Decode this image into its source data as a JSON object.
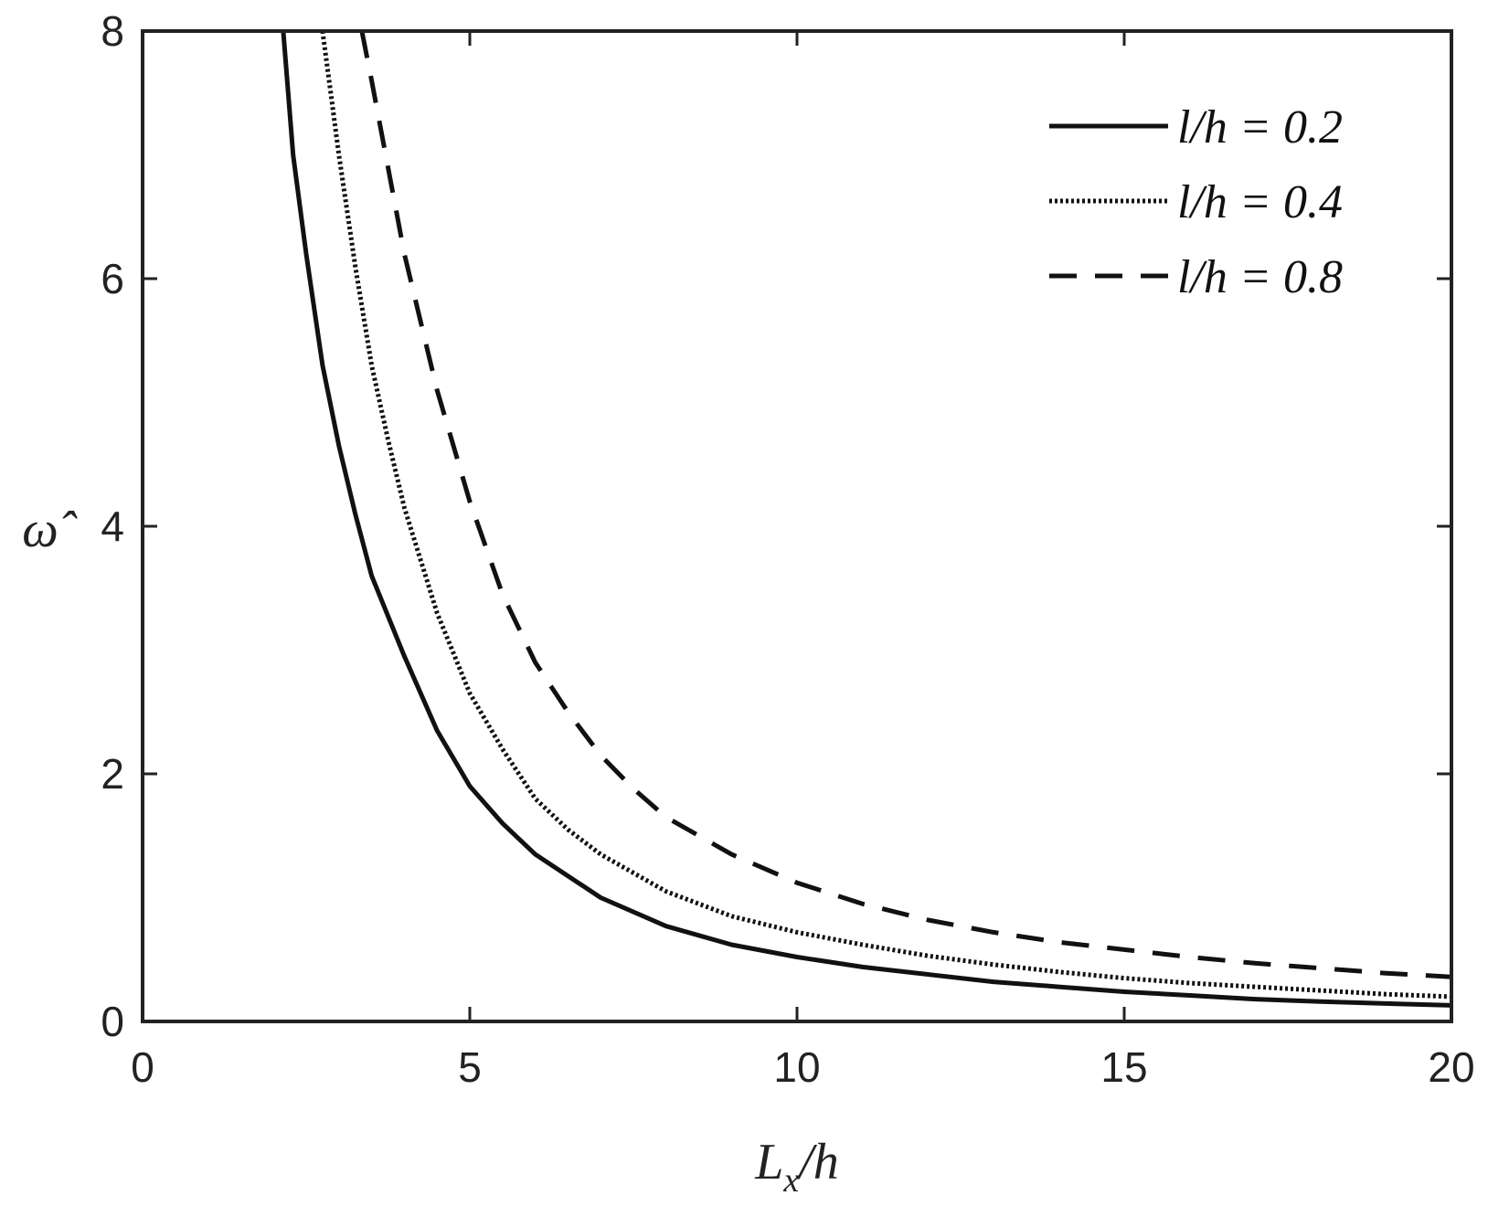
{
  "chart_data": {
    "type": "line",
    "xlabel": "Lx/h",
    "xlabel_main": "L",
    "xlabel_sub": "x",
    "xlabel_rest": "/h",
    "ylabel": "ω̂",
    "xlim": [
      0,
      20
    ],
    "ylim": [
      0,
      8
    ],
    "xticks": [
      "0",
      "5",
      "10",
      "15",
      "20"
    ],
    "yticks": [
      "0",
      "2",
      "4",
      "6",
      "8"
    ],
    "grid": false,
    "legend_position": "top-right",
    "series": [
      {
        "name": "l/h = 0.2",
        "style": "solid",
        "x": [
          2.15,
          2.3,
          2.5,
          2.75,
          3.0,
          3.25,
          3.5,
          4.0,
          4.5,
          5.0,
          5.5,
          6.0,
          7.0,
          8.0,
          9.0,
          10.0,
          11.0,
          12.0,
          13.0,
          14.0,
          15.0,
          16.0,
          17.0,
          18.0,
          19.0,
          20.0
        ],
        "y": [
          8.0,
          7.0,
          6.2,
          5.3,
          4.65,
          4.1,
          3.6,
          2.95,
          2.35,
          1.9,
          1.6,
          1.35,
          1.0,
          0.77,
          0.62,
          0.52,
          0.44,
          0.38,
          0.32,
          0.28,
          0.24,
          0.21,
          0.18,
          0.16,
          0.145,
          0.13
        ]
      },
      {
        "name": "l/h = 0.4",
        "style": "dotted",
        "x": [
          2.75,
          3.0,
          3.25,
          3.5,
          3.75,
          4.0,
          4.5,
          5.0,
          5.5,
          6.0,
          6.5,
          7.0,
          8.0,
          9.0,
          10.0,
          11.0,
          12.0,
          13.0,
          14.0,
          15.0,
          16.0,
          17.0,
          18.0,
          19.0,
          20.0
        ],
        "y": [
          8.0,
          7.0,
          6.1,
          5.3,
          4.7,
          4.15,
          3.3,
          2.65,
          2.2,
          1.8,
          1.55,
          1.35,
          1.05,
          0.85,
          0.72,
          0.62,
          0.53,
          0.46,
          0.4,
          0.35,
          0.31,
          0.28,
          0.25,
          0.22,
          0.2
        ]
      },
      {
        "name": "l/h = 0.8",
        "style": "dashed",
        "x": [
          3.35,
          3.5,
          3.75,
          4.0,
          4.5,
          5.0,
          5.5,
          6.0,
          6.5,
          7.0,
          7.5,
          8.0,
          9.0,
          10.0,
          11.0,
          12.0,
          13.0,
          14.0,
          15.0,
          16.0,
          17.0,
          18.0,
          19.0,
          20.0
        ],
        "y": [
          8.0,
          7.6,
          6.9,
          6.2,
          5.1,
          4.2,
          3.45,
          2.9,
          2.5,
          2.15,
          1.88,
          1.65,
          1.35,
          1.12,
          0.95,
          0.82,
          0.72,
          0.64,
          0.58,
          0.52,
          0.47,
          0.43,
          0.39,
          0.36
        ]
      }
    ]
  }
}
